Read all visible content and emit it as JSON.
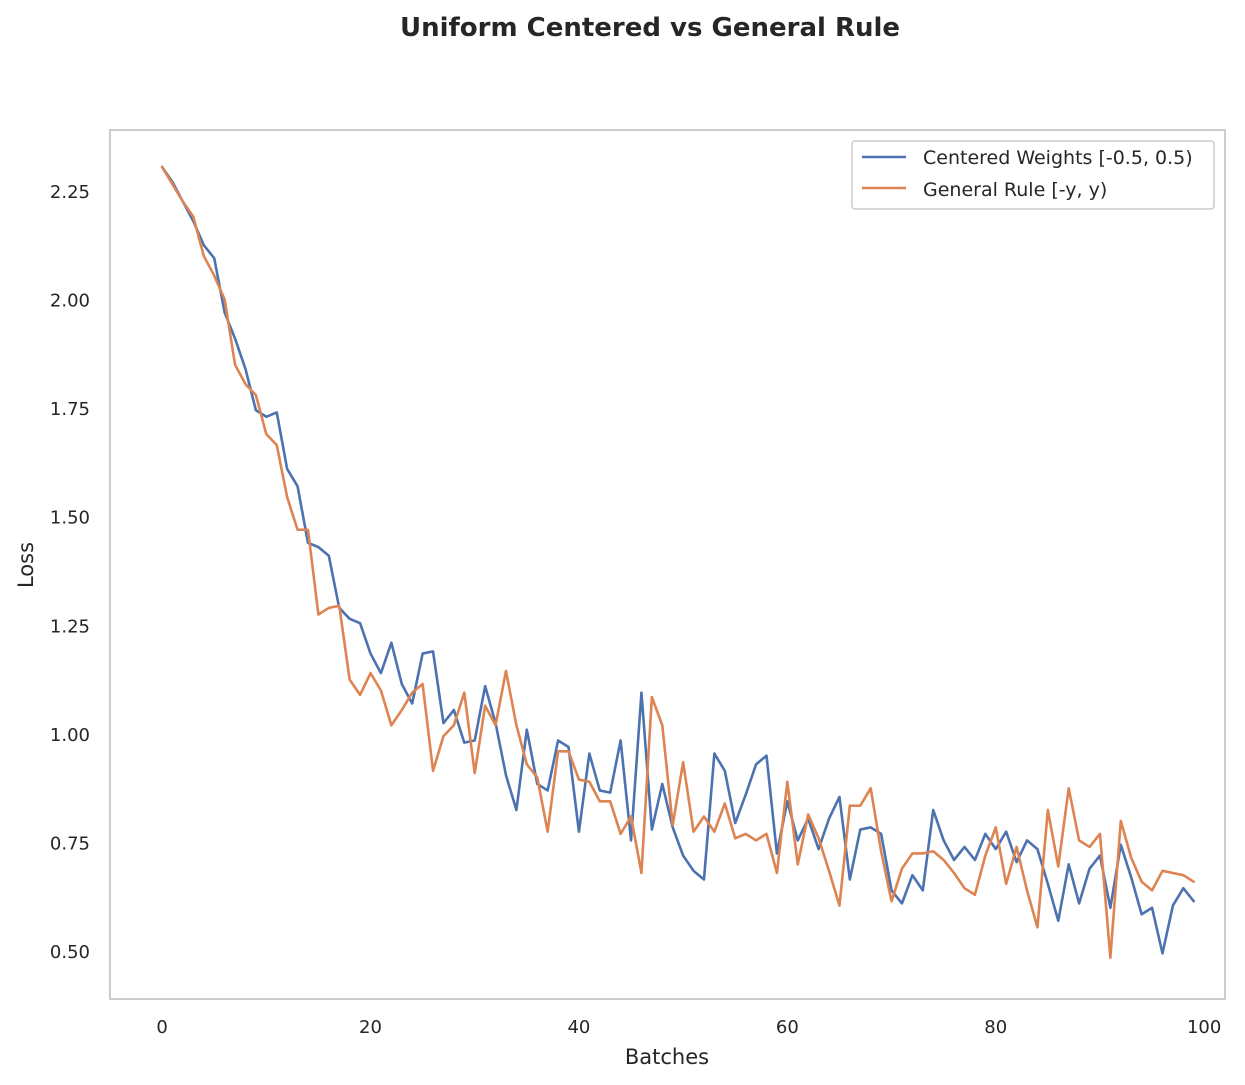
{
  "chart_data": {
    "type": "line",
    "title": "Uniform Centered vs General Rule",
    "xlabel": "Batches",
    "ylabel": "Loss",
    "xlim": [
      -5,
      102
    ],
    "ylim": [
      0.39,
      2.39
    ],
    "xticks": [
      0,
      20,
      40,
      60,
      80,
      100
    ],
    "xtick_labels": [
      "0",
      "20",
      "40",
      "60",
      "80",
      "100"
    ],
    "yticks": [
      0.5,
      0.75,
      1.0,
      1.25,
      1.5,
      1.75,
      2.0,
      2.25
    ],
    "ytick_labels": [
      "0.50",
      "0.75",
      "1.00",
      "1.25",
      "1.50",
      "1.75",
      "2.00",
      "2.25"
    ],
    "grid": false,
    "legend_position": "top-right",
    "series": [
      {
        "name": "Centered Weights [-0.5, 0.5)",
        "color": "#4c72b0",
        "values": [
          2.305,
          2.27,
          2.225,
          2.18,
          2.125,
          2.095,
          1.97,
          1.91,
          1.84,
          1.745,
          1.73,
          1.74,
          1.61,
          1.57,
          1.44,
          1.43,
          1.41,
          1.29,
          1.265,
          1.255,
          1.185,
          1.14,
          1.21,
          1.115,
          1.07,
          1.185,
          1.19,
          1.025,
          1.055,
          0.98,
          0.985,
          1.11,
          1.025,
          0.905,
          0.825,
          1.01,
          0.885,
          0.87,
          0.985,
          0.97,
          0.775,
          0.955,
          0.87,
          0.865,
          0.985,
          0.755,
          1.095,
          0.78,
          0.885,
          0.785,
          0.72,
          0.685,
          0.665,
          0.955,
          0.915,
          0.795,
          0.86,
          0.93,
          0.95,
          0.725,
          0.845,
          0.755,
          0.805,
          0.735,
          0.805,
          0.855,
          0.665,
          0.78,
          0.785,
          0.77,
          0.64,
          0.61,
          0.675,
          0.64,
          0.825,
          0.755,
          0.71,
          0.74,
          0.71,
          0.77,
          0.735,
          0.775,
          0.705,
          0.755,
          0.735,
          0.655,
          0.57,
          0.7,
          0.61,
          0.69,
          0.72,
          0.6,
          0.745,
          0.67,
          0.585,
          0.6,
          0.495,
          0.605,
          0.645,
          0.615
        ]
      },
      {
        "name": "General Rule [-y, y)",
        "color": "#dd8452",
        "values": [
          2.305,
          2.265,
          2.225,
          2.19,
          2.1,
          2.055,
          2.0,
          1.85,
          1.805,
          1.78,
          1.69,
          1.665,
          1.545,
          1.47,
          1.47,
          1.275,
          1.29,
          1.295,
          1.125,
          1.09,
          1.14,
          1.1,
          1.02,
          1.055,
          1.095,
          1.115,
          0.915,
          0.995,
          1.02,
          1.095,
          0.91,
          1.065,
          1.02,
          1.145,
          1.02,
          0.93,
          0.9,
          0.775,
          0.96,
          0.96,
          0.895,
          0.89,
          0.845,
          0.845,
          0.77,
          0.81,
          0.68,
          1.085,
          1.02,
          0.79,
          0.935,
          0.775,
          0.81,
          0.775,
          0.84,
          0.76,
          0.77,
          0.755,
          0.77,
          0.68,
          0.89,
          0.7,
          0.815,
          0.76,
          0.685,
          0.605,
          0.835,
          0.835,
          0.875,
          0.73,
          0.615,
          0.69,
          0.725,
          0.725,
          0.73,
          0.71,
          0.68,
          0.645,
          0.63,
          0.72,
          0.785,
          0.655,
          0.74,
          0.64,
          0.555,
          0.825,
          0.695,
          0.875,
          0.755,
          0.74,
          0.77,
          0.485,
          0.8,
          0.715,
          0.66,
          0.64,
          0.685,
          0.68,
          0.675,
          0.66
        ]
      }
    ]
  }
}
